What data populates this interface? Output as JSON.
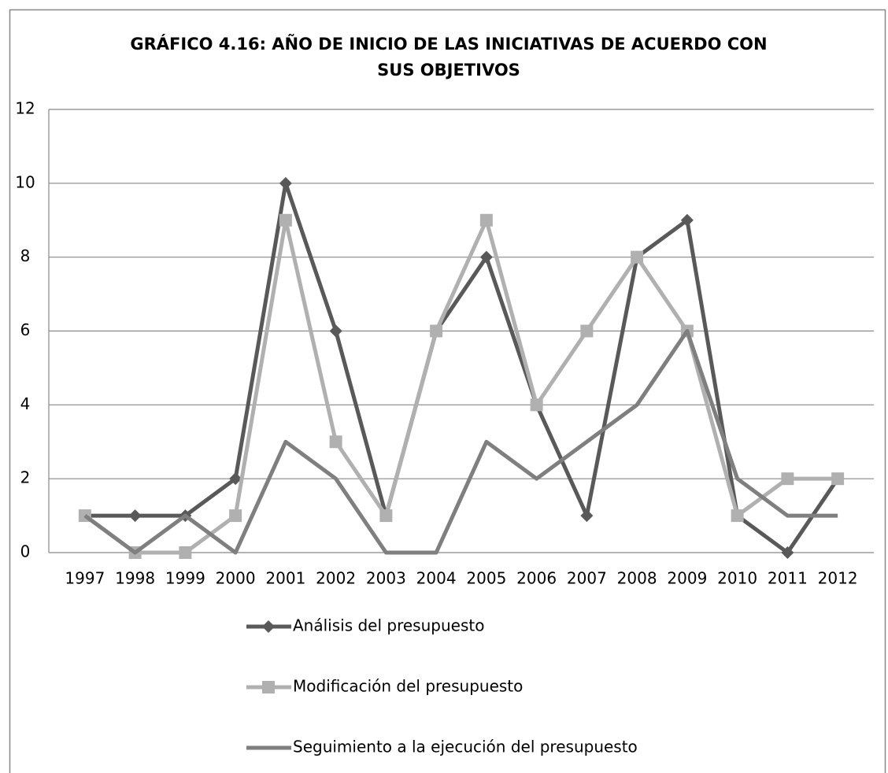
{
  "chart_data": {
    "type": "line",
    "title": [
      "GRÁFICO 4.16: AÑO DE INICIO DE LAS INICIATIVAS DE ACUERDO CON",
      "SUS OBJETIVOS"
    ],
    "categories": [
      "1997",
      "1998",
      "1999",
      "2000",
      "2001",
      "2002",
      "2003",
      "2004",
      "2005",
      "2006",
      "2007",
      "2008",
      "2009",
      "2010",
      "2011",
      "2012"
    ],
    "series": [
      {
        "name": "Análisis del presupuesto",
        "color": "#595959",
        "marker": "diamond",
        "values": [
          1,
          1,
          1,
          2,
          10,
          6,
          1,
          6,
          8,
          4,
          1,
          8,
          9,
          1,
          0,
          2
        ]
      },
      {
        "name": "Modificación del presupuesto",
        "color": "#b0b0b0",
        "marker": "square",
        "values": [
          1,
          0,
          0,
          1,
          9,
          3,
          1,
          6,
          9,
          4,
          6,
          8,
          6,
          1,
          2,
          2
        ]
      },
      {
        "name": "Seguimiento a la ejecución del presupuesto",
        "color": "#7f7f7f",
        "marker": null,
        "values": [
          1,
          0,
          1,
          0,
          3,
          2,
          0,
          0,
          3,
          2,
          3,
          4,
          6,
          2,
          1,
          1
        ]
      }
    ],
    "ylim": [
      0,
      12
    ],
    "yticks": [
      0,
      2,
      4,
      6,
      8,
      10,
      12
    ],
    "grid": true,
    "legend": "bottom"
  }
}
